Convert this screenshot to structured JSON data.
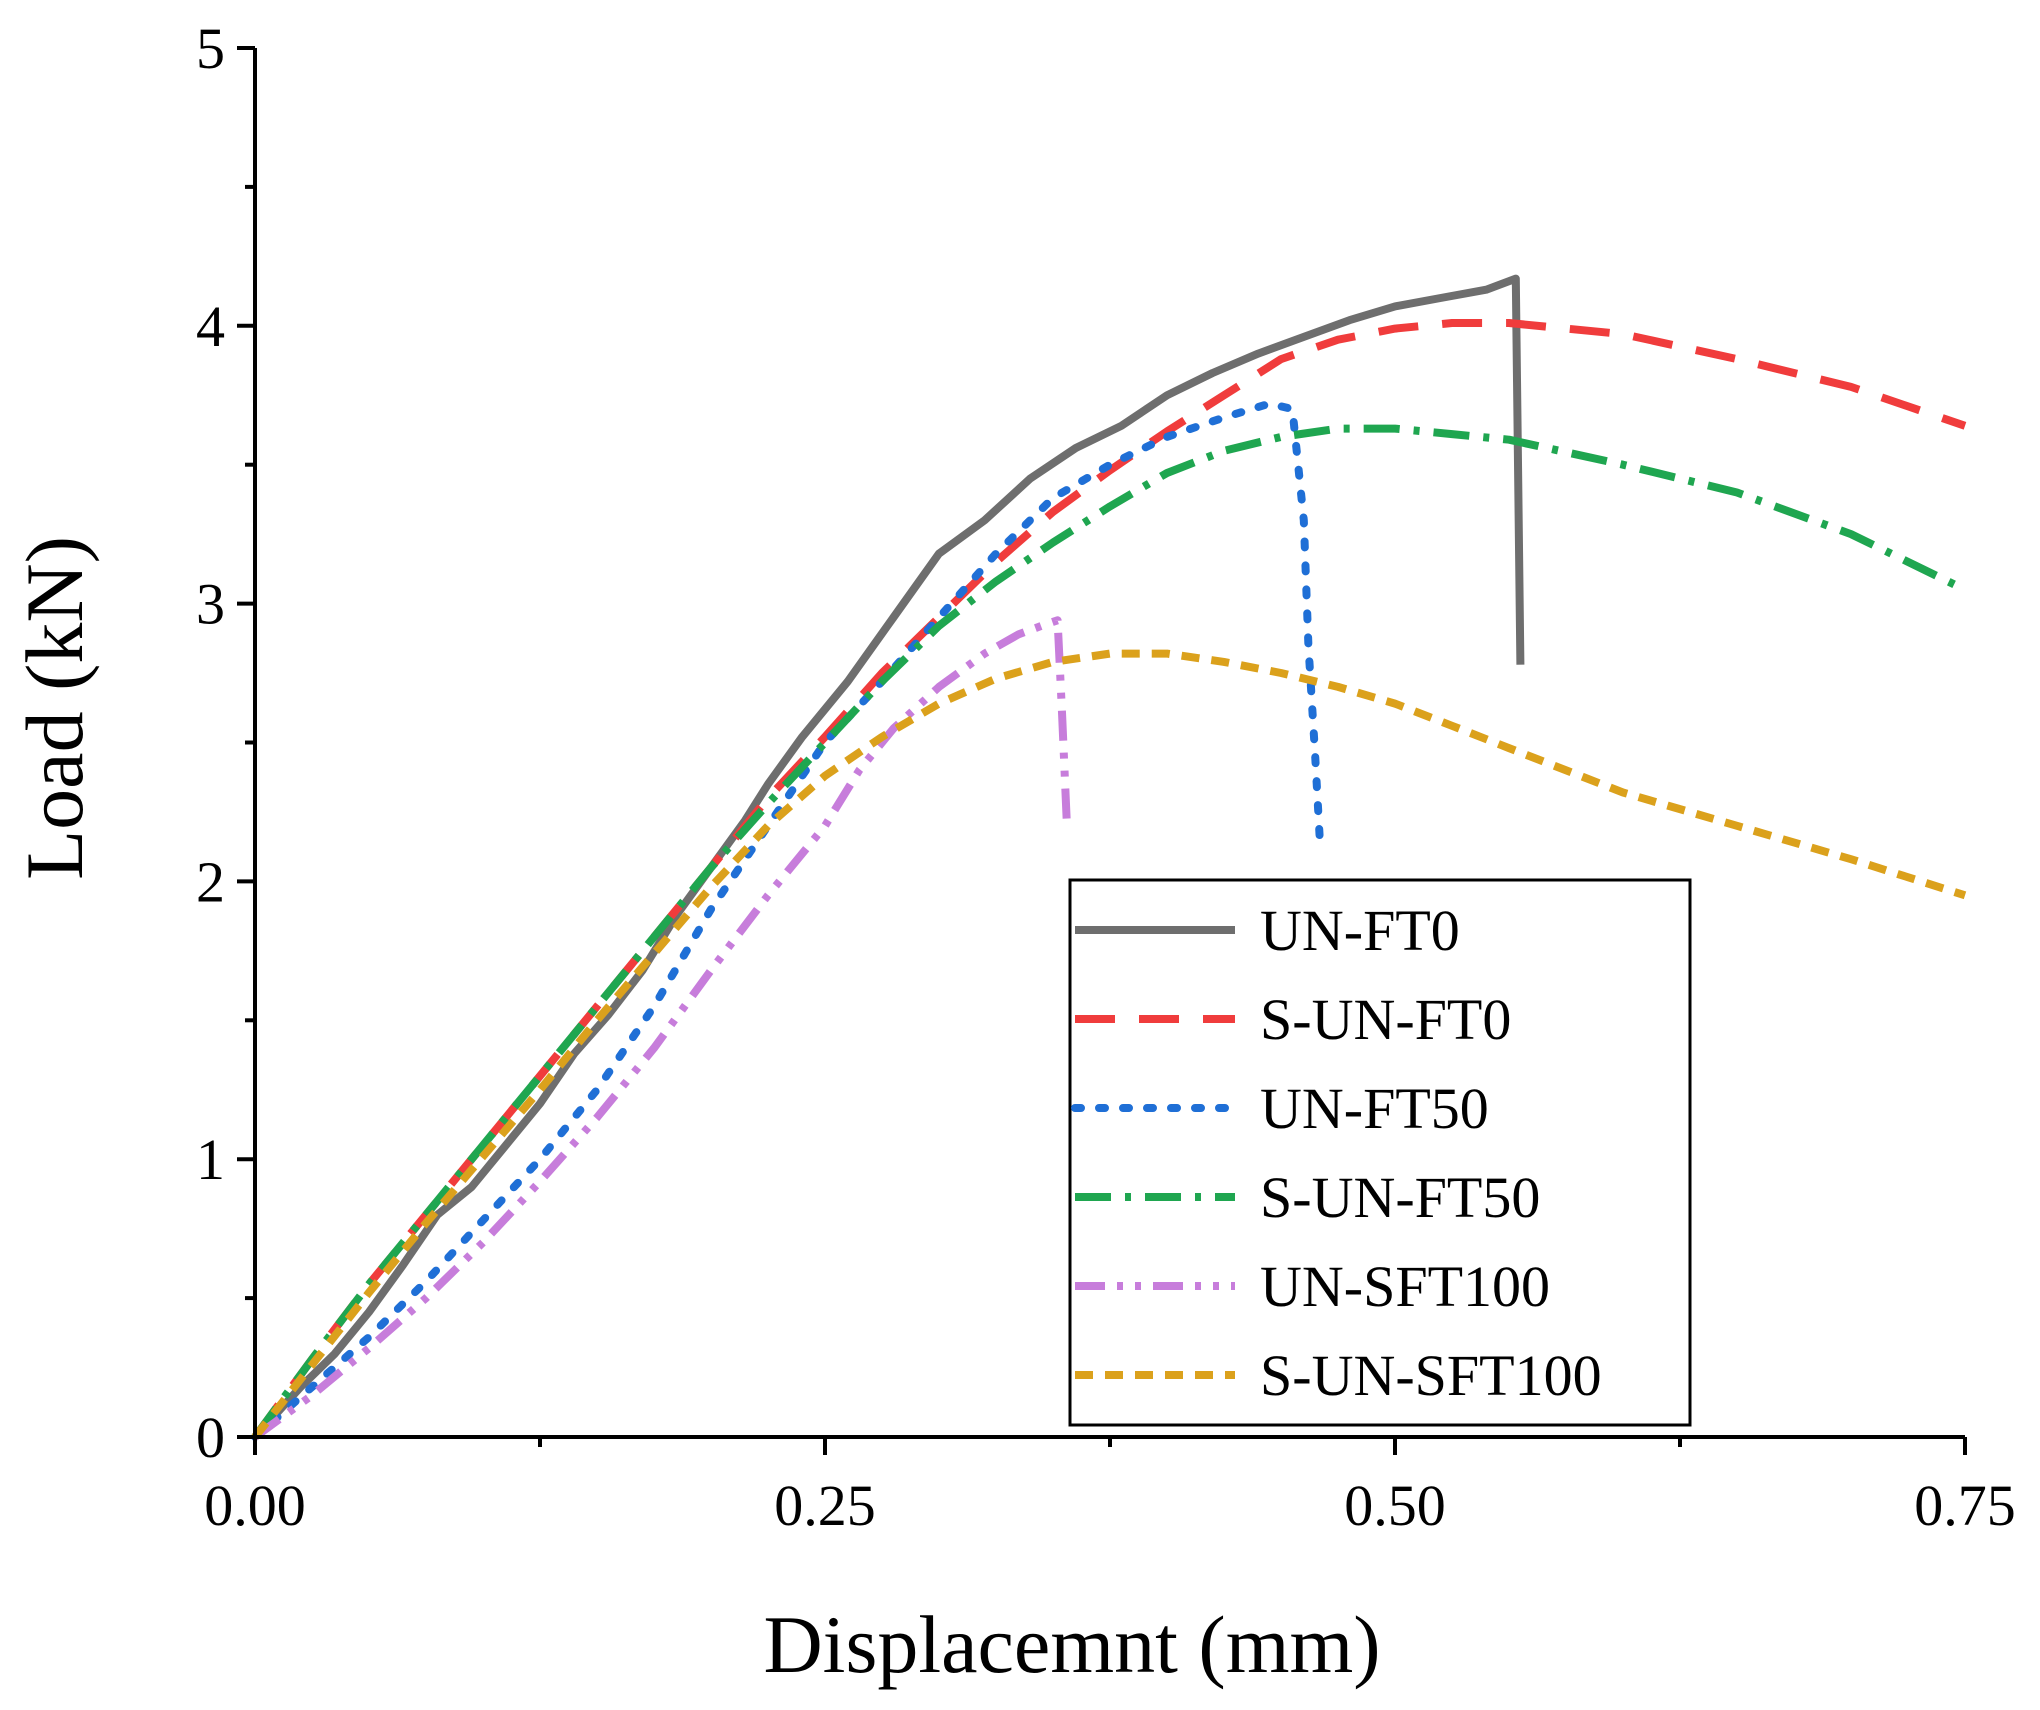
{
  "chart_data": {
    "type": "line",
    "title": "",
    "xlabel": "Displacemnt (mm)",
    "ylabel": "Load (kN)",
    "xlim": [
      0,
      0.75
    ],
    "ylim": [
      0,
      5
    ],
    "xticks": [
      0,
      0.25,
      0.5,
      0.75
    ],
    "xtick_labels": [
      "0.00",
      "0.25",
      "0.50",
      "0.75"
    ],
    "yticks": [
      0,
      1,
      2,
      3,
      4,
      5
    ],
    "ytick_labels": [
      "0",
      "1",
      "2",
      "3",
      "4",
      "5"
    ],
    "grid": false,
    "legend_position": "bottom-right",
    "series": [
      {
        "name": "UN-FT0",
        "color": "#6e6e6e",
        "style": "solid",
        "points": [
          [
            0,
            0
          ],
          [
            0.02,
            0.18
          ],
          [
            0.035,
            0.3
          ],
          [
            0.05,
            0.45
          ],
          [
            0.065,
            0.62
          ],
          [
            0.08,
            0.8
          ],
          [
            0.095,
            0.9
          ],
          [
            0.11,
            1.05
          ],
          [
            0.125,
            1.2
          ],
          [
            0.14,
            1.38
          ],
          [
            0.155,
            1.52
          ],
          [
            0.17,
            1.68
          ],
          [
            0.185,
            1.88
          ],
          [
            0.2,
            2.05
          ],
          [
            0.215,
            2.22
          ],
          [
            0.225,
            2.35
          ],
          [
            0.24,
            2.52
          ],
          [
            0.26,
            2.72
          ],
          [
            0.28,
            2.95
          ],
          [
            0.3,
            3.18
          ],
          [
            0.32,
            3.3
          ],
          [
            0.34,
            3.45
          ],
          [
            0.36,
            3.56
          ],
          [
            0.38,
            3.64
          ],
          [
            0.4,
            3.75
          ],
          [
            0.42,
            3.83
          ],
          [
            0.44,
            3.9
          ],
          [
            0.46,
            3.96
          ],
          [
            0.48,
            4.02
          ],
          [
            0.5,
            4.07
          ],
          [
            0.52,
            4.1
          ],
          [
            0.54,
            4.13
          ],
          [
            0.553,
            4.17
          ],
          [
            0.555,
            2.78
          ]
        ]
      },
      {
        "name": "S-UN-FT0",
        "color": "#f03c3c",
        "style": "dash",
        "points": [
          [
            0,
            0
          ],
          [
            0.025,
            0.28
          ],
          [
            0.05,
            0.55
          ],
          [
            0.075,
            0.8
          ],
          [
            0.1,
            1.05
          ],
          [
            0.125,
            1.3
          ],
          [
            0.15,
            1.55
          ],
          [
            0.175,
            1.8
          ],
          [
            0.2,
            2.05
          ],
          [
            0.225,
            2.3
          ],
          [
            0.25,
            2.52
          ],
          [
            0.275,
            2.75
          ],
          [
            0.3,
            2.95
          ],
          [
            0.325,
            3.15
          ],
          [
            0.35,
            3.33
          ],
          [
            0.375,
            3.48
          ],
          [
            0.4,
            3.62
          ],
          [
            0.425,
            3.75
          ],
          [
            0.45,
            3.88
          ],
          [
            0.475,
            3.95
          ],
          [
            0.5,
            3.99
          ],
          [
            0.525,
            4.01
          ],
          [
            0.55,
            4.01
          ],
          [
            0.6,
            3.97
          ],
          [
            0.65,
            3.88
          ],
          [
            0.7,
            3.78
          ],
          [
            0.75,
            3.64
          ]
        ]
      },
      {
        "name": "UN-FT50",
        "color": "#1f6fd6",
        "style": "dot",
        "points": [
          [
            0,
            0
          ],
          [
            0.025,
            0.18
          ],
          [
            0.05,
            0.36
          ],
          [
            0.075,
            0.56
          ],
          [
            0.1,
            0.78
          ],
          [
            0.125,
            1.0
          ],
          [
            0.15,
            1.25
          ],
          [
            0.175,
            1.55
          ],
          [
            0.2,
            1.9
          ],
          [
            0.225,
            2.2
          ],
          [
            0.25,
            2.5
          ],
          [
            0.275,
            2.72
          ],
          [
            0.3,
            2.95
          ],
          [
            0.325,
            3.18
          ],
          [
            0.35,
            3.38
          ],
          [
            0.375,
            3.5
          ],
          [
            0.4,
            3.6
          ],
          [
            0.425,
            3.67
          ],
          [
            0.445,
            3.72
          ],
          [
            0.455,
            3.7
          ],
          [
            0.46,
            3.3
          ],
          [
            0.462,
            2.85
          ],
          [
            0.465,
            2.45
          ],
          [
            0.467,
            2.15
          ]
        ]
      },
      {
        "name": "S-UN-FT50",
        "color": "#1fa650",
        "style": "dashdot",
        "points": [
          [
            0,
            0
          ],
          [
            0.025,
            0.28
          ],
          [
            0.05,
            0.55
          ],
          [
            0.075,
            0.8
          ],
          [
            0.1,
            1.05
          ],
          [
            0.125,
            1.3
          ],
          [
            0.15,
            1.55
          ],
          [
            0.175,
            1.8
          ],
          [
            0.2,
            2.05
          ],
          [
            0.225,
            2.28
          ],
          [
            0.25,
            2.5
          ],
          [
            0.275,
            2.72
          ],
          [
            0.3,
            2.92
          ],
          [
            0.325,
            3.08
          ],
          [
            0.35,
            3.22
          ],
          [
            0.375,
            3.35
          ],
          [
            0.4,
            3.47
          ],
          [
            0.425,
            3.55
          ],
          [
            0.45,
            3.6
          ],
          [
            0.475,
            3.63
          ],
          [
            0.5,
            3.63
          ],
          [
            0.525,
            3.61
          ],
          [
            0.55,
            3.59
          ],
          [
            0.6,
            3.5
          ],
          [
            0.65,
            3.4
          ],
          [
            0.7,
            3.25
          ],
          [
            0.75,
            3.05
          ]
        ]
      },
      {
        "name": "UN-SFT100",
        "color": "#c77ddb",
        "style": "dashdotdot",
        "points": [
          [
            0,
            0
          ],
          [
            0.025,
            0.15
          ],
          [
            0.05,
            0.32
          ],
          [
            0.075,
            0.5
          ],
          [
            0.1,
            0.7
          ],
          [
            0.125,
            0.92
          ],
          [
            0.15,
            1.15
          ],
          [
            0.175,
            1.4
          ],
          [
            0.2,
            1.68
          ],
          [
            0.225,
            1.95
          ],
          [
            0.25,
            2.2
          ],
          [
            0.265,
            2.4
          ],
          [
            0.28,
            2.55
          ],
          [
            0.3,
            2.7
          ],
          [
            0.32,
            2.82
          ],
          [
            0.335,
            2.89
          ],
          [
            0.345,
            2.92
          ],
          [
            0.352,
            2.94
          ],
          [
            0.354,
            2.6
          ],
          [
            0.356,
            2.22
          ]
        ]
      },
      {
        "name": "S-UN-SFT100",
        "color": "#dba11c",
        "style": "shortdash",
        "points": [
          [
            0,
            0
          ],
          [
            0.025,
            0.26
          ],
          [
            0.05,
            0.52
          ],
          [
            0.075,
            0.77
          ],
          [
            0.1,
            1.01
          ],
          [
            0.125,
            1.25
          ],
          [
            0.15,
            1.5
          ],
          [
            0.175,
            1.74
          ],
          [
            0.2,
            1.98
          ],
          [
            0.225,
            2.2
          ],
          [
            0.25,
            2.38
          ],
          [
            0.275,
            2.52
          ],
          [
            0.3,
            2.64
          ],
          [
            0.325,
            2.73
          ],
          [
            0.35,
            2.79
          ],
          [
            0.375,
            2.82
          ],
          [
            0.4,
            2.82
          ],
          [
            0.425,
            2.79
          ],
          [
            0.45,
            2.75
          ],
          [
            0.475,
            2.7
          ],
          [
            0.5,
            2.64
          ],
          [
            0.525,
            2.56
          ],
          [
            0.55,
            2.48
          ],
          [
            0.6,
            2.32
          ],
          [
            0.65,
            2.2
          ],
          [
            0.7,
            2.08
          ],
          [
            0.75,
            1.95
          ]
        ]
      }
    ]
  }
}
